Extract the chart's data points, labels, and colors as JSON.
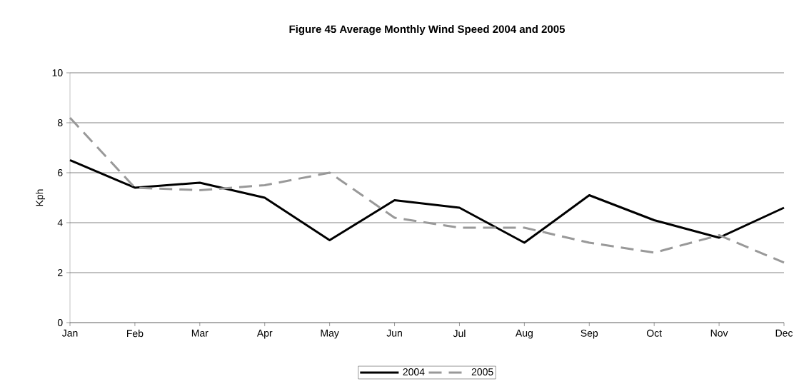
{
  "chart_data": {
    "type": "line",
    "title": "Figure 45 Average Monthly Wind Speed 2004 and 2005",
    "ylabel": "Kph",
    "categories": [
      "Jan",
      "Feb",
      "Mar",
      "Apr",
      "May",
      "Jun",
      "Jul",
      "Aug",
      "Sep",
      "Oct",
      "Nov",
      "Dec"
    ],
    "series": [
      {
        "name": "2004",
        "color": "#000000",
        "line_style": "solid",
        "values": [
          6.5,
          5.4,
          5.6,
          5.0,
          3.3,
          4.9,
          4.6,
          3.2,
          5.1,
          4.1,
          3.4,
          4.6
        ]
      },
      {
        "name": "2005",
        "color": "#999999",
        "line_style": "dashed",
        "values": [
          8.2,
          5.4,
          5.3,
          5.5,
          6.0,
          4.2,
          3.8,
          3.8,
          3.2,
          2.8,
          3.5,
          2.4
        ]
      }
    ],
    "ylim": [
      0,
      10
    ],
    "yticks": [
      0,
      2,
      4,
      6,
      8,
      10
    ],
    "grid": "y",
    "legend": "bottom",
    "marker": "none"
  }
}
